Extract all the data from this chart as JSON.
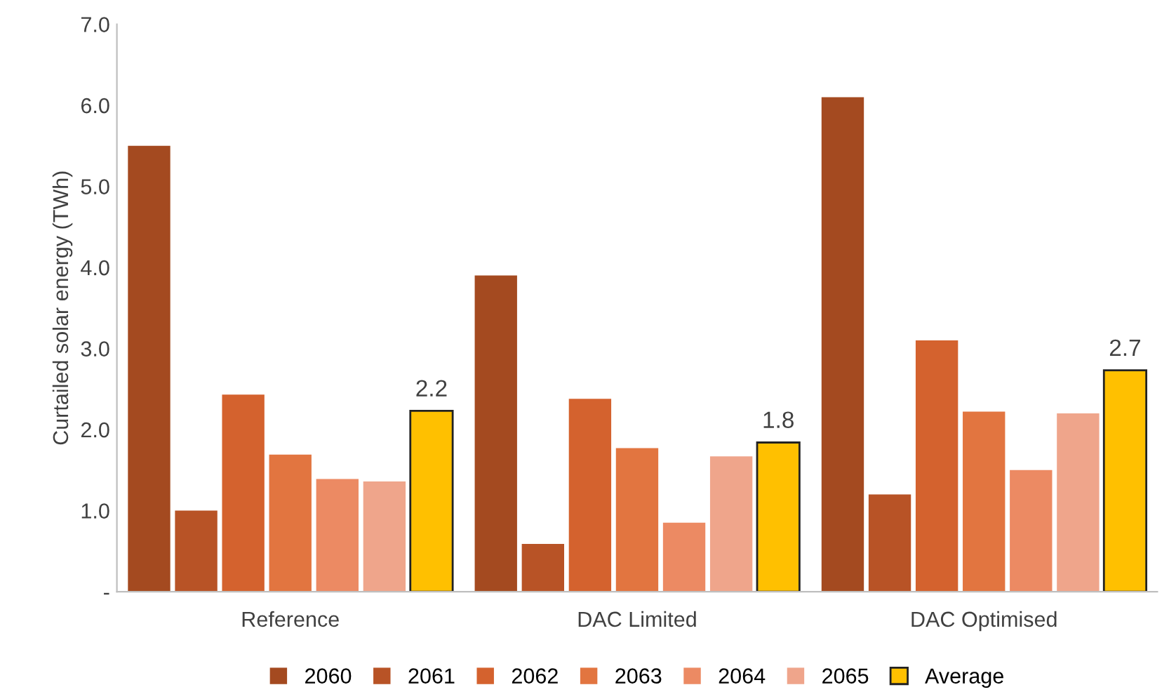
{
  "chart_data": {
    "type": "bar",
    "ylabel": "Curtailed solar energy (TWh)",
    "categories": [
      "Reference",
      "DAC Limited",
      "DAC Optimised"
    ],
    "series": [
      {
        "name": "2060",
        "color": "#a44a20",
        "values": [
          5.5,
          3.9,
          6.1
        ]
      },
      {
        "name": "2061",
        "color": "#b85326",
        "values": [
          1.0,
          0.59,
          1.2
        ]
      },
      {
        "name": "2062",
        "color": "#d4622e",
        "values": [
          2.43,
          2.38,
          3.1
        ]
      },
      {
        "name": "2063",
        "color": "#e27540",
        "values": [
          1.69,
          1.77,
          2.22
        ]
      },
      {
        "name": "2064",
        "color": "#ec8a63",
        "values": [
          1.39,
          0.85,
          1.5
        ]
      },
      {
        "name": "2065",
        "color": "#efa58b",
        "values": [
          1.36,
          1.67,
          2.2
        ]
      },
      {
        "name": "Average",
        "color": "#ffc000",
        "values": [
          2.23,
          1.84,
          2.73
        ],
        "value_labels": [
          "2.2",
          "1.8",
          "2.7"
        ]
      }
    ],
    "ylim": [
      0,
      7
    ],
    "yticks": [
      {
        "value": 0,
        "label": "-"
      },
      {
        "value": 1,
        "label": "1.0"
      },
      {
        "value": 2,
        "label": "2.0"
      },
      {
        "value": 3,
        "label": "3.0"
      },
      {
        "value": 4,
        "label": "4.0"
      },
      {
        "value": 5,
        "label": "5.0"
      },
      {
        "value": 6,
        "label": "6.0"
      },
      {
        "value": 7,
        "label": "7.0"
      }
    ],
    "grid": false,
    "legend": "bottom"
  }
}
